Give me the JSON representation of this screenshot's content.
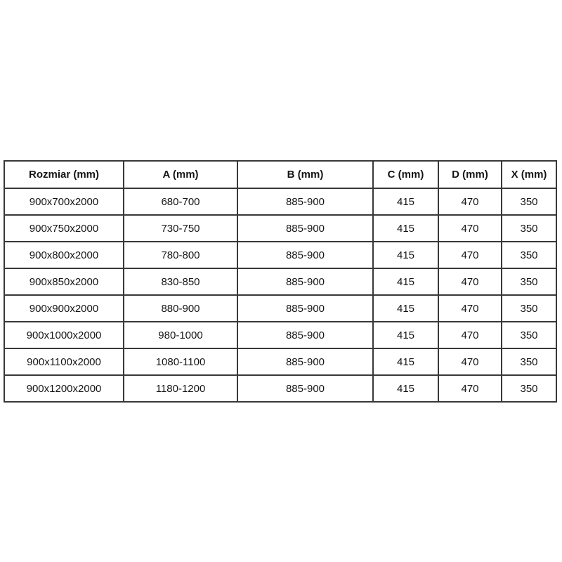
{
  "table": {
    "columns": [
      {
        "label": "Rozmiar (mm)"
      },
      {
        "label": "A (mm)"
      },
      {
        "label": "B (mm)"
      },
      {
        "label": "C (mm)"
      },
      {
        "label": "D (mm)"
      },
      {
        "label": "X (mm)"
      }
    ],
    "rows": [
      [
        "900x700x2000",
        "680-700",
        "885-900",
        "415",
        "470",
        "350"
      ],
      [
        "900x750x2000",
        "730-750",
        "885-900",
        "415",
        "470",
        "350"
      ],
      [
        "900x800x2000",
        "780-800",
        "885-900",
        "415",
        "470",
        "350"
      ],
      [
        "900x850x2000",
        "830-850",
        "885-900",
        "415",
        "470",
        "350"
      ],
      [
        "900x900x2000",
        "880-900",
        "885-900",
        "415",
        "470",
        "350"
      ],
      [
        "900x1000x2000",
        "980-1000",
        "885-900",
        "415",
        "470",
        "350"
      ],
      [
        "900x1100x2000",
        "1080-1100",
        "885-900",
        "415",
        "470",
        "350"
      ],
      [
        "900x1200x2000",
        "1180-1200",
        "885-900",
        "415",
        "470",
        "350"
      ]
    ]
  },
  "colors": {
    "border": "#383838",
    "text": "#151515",
    "background": "#ffffff"
  }
}
